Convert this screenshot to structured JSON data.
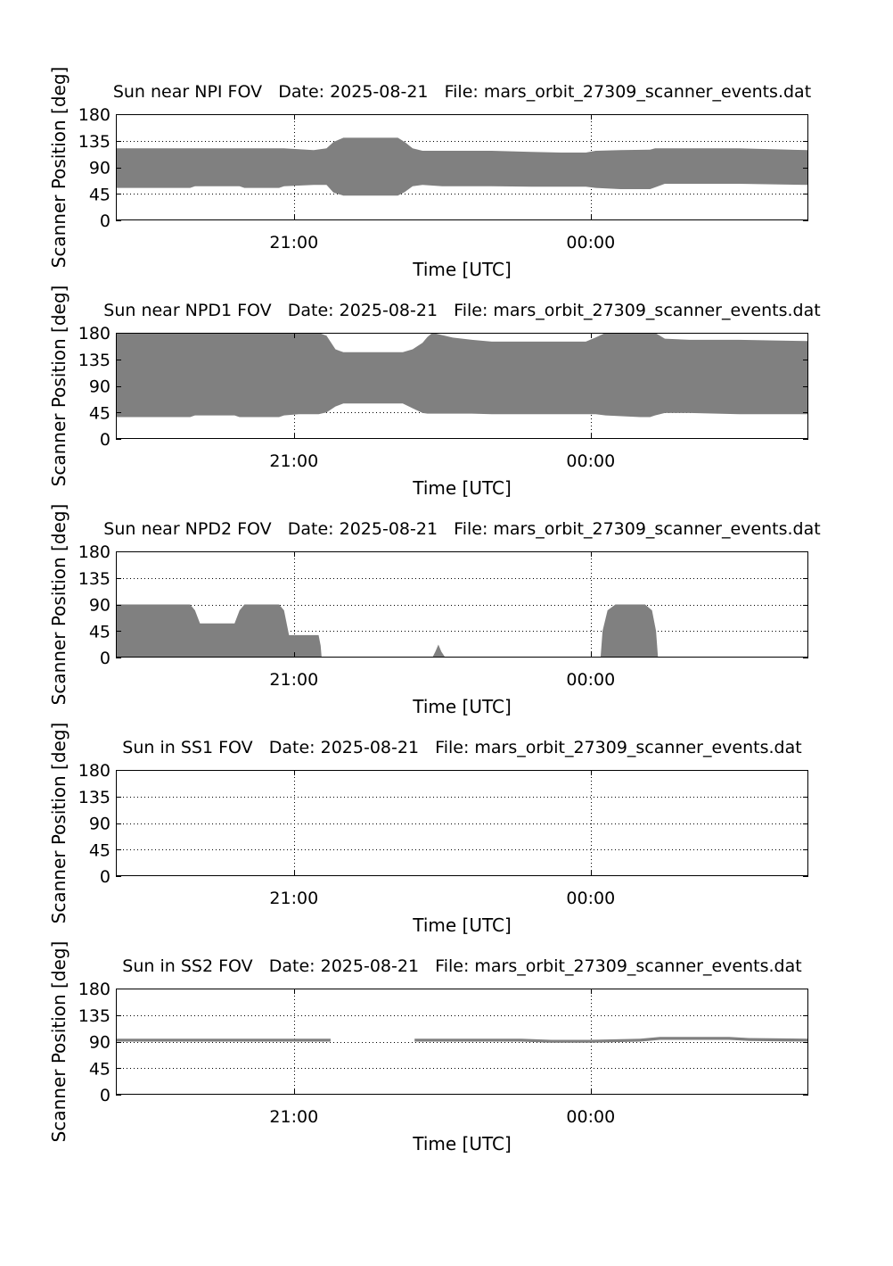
{
  "figure": {
    "background": "#ffffff",
    "fill_color": "#808080",
    "axis_color": "#000000",
    "grid": "dotted"
  },
  "chart_data": [
    {
      "type": "area",
      "title": "Sun near NPI FOV   Date: 2025-08-21   File: mars_orbit_27309_scanner_events.dat",
      "xlabel": "Time [UTC]",
      "ylabel": "Scanner Position [deg]",
      "ylim": [
        0,
        180
      ],
      "yticks": [
        0,
        45,
        90,
        135,
        180
      ],
      "xlim": [
        -1.8,
        5.2
      ],
      "xticks": [
        0,
        3
      ],
      "xtick_labels": [
        "21:00",
        "00:00"
      ],
      "series": [
        {
          "segments": [
            {
              "x": [
                -1.8,
                -1.05,
                -1.0,
                -0.55,
                -0.5,
                -0.15,
                -0.1,
                0.2,
                0.33,
                0.4,
                0.5,
                1.05,
                1.12,
                1.2,
                1.3,
                1.5,
                1.7,
                2.0,
                2.4,
                2.7,
                2.95,
                3.05,
                3.3,
                3.6,
                3.65,
                3.75,
                4.5,
                5.2
              ],
              "lower": [
                55,
                55,
                58,
                58,
                55,
                55,
                58,
                60,
                60,
                47,
                42,
                42,
                48,
                58,
                60,
                58,
                58,
                58,
                57,
                57,
                57,
                55,
                53,
                53,
                56,
                62,
                62,
                60
              ],
              "upper": [
                122,
                122,
                122,
                122,
                122,
                122,
                122,
                119,
                122,
                133,
                140,
                140,
                133,
                122,
                118,
                118,
                118,
                118,
                116,
                115,
                115,
                118,
                119,
                120,
                122,
                122,
                122,
                119
              ]
            }
          ]
        }
      ]
    },
    {
      "type": "area",
      "title": "Sun near NPD1 FOV   Date: 2025-08-21   File: mars_orbit_27309_scanner_events.dat",
      "xlabel": "Time [UTC]",
      "ylabel": "Scanner Position [deg]",
      "ylim": [
        0,
        180
      ],
      "yticks": [
        0,
        45,
        90,
        135,
        180
      ],
      "xlim": [
        -1.8,
        5.2
      ],
      "xticks": [
        0,
        3
      ],
      "xtick_labels": [
        "21:00",
        "00:00"
      ],
      "series": [
        {
          "segments": [
            {
              "x": [
                -1.8,
                -1.05,
                -1.0,
                -0.6,
                -0.55,
                -0.15,
                -0.1,
                0.05,
                0.25,
                0.33,
                0.42,
                0.5,
                1.1,
                1.2,
                1.3,
                1.35,
                1.4,
                1.5,
                1.6,
                1.8,
                2.0,
                2.5,
                2.95,
                3.05,
                3.15,
                3.5,
                3.6,
                3.65,
                3.75,
                4.0,
                4.5,
                5.2
              ],
              "lower": [
                37,
                37,
                40,
                40,
                37,
                37,
                40,
                42,
                42,
                45,
                55,
                60,
                60,
                52,
                44,
                43,
                43,
                43,
                43,
                43,
                42,
                42,
                42,
                42,
                40,
                37,
                37,
                40,
                44,
                44,
                42,
                42
              ],
              "upper": [
                180,
                180,
                180,
                180,
                180,
                180,
                180,
                180,
                180,
                175,
                152,
                147,
                147,
                152,
                163,
                173,
                180,
                176,
                172,
                168,
                165,
                165,
                165,
                172,
                180,
                180,
                180,
                180,
                170,
                168,
                168,
                166
              ]
            }
          ]
        }
      ]
    },
    {
      "type": "area",
      "title": "Sun near NPD2 FOV   Date: 2025-08-21   File: mars_orbit_27309_scanner_events.dat",
      "xlabel": "Time [UTC]",
      "ylabel": "Scanner Position [deg]",
      "ylim": [
        0,
        180
      ],
      "yticks": [
        0,
        45,
        90,
        135,
        180
      ],
      "xlim": [
        -1.8,
        5.2
      ],
      "xticks": [
        0,
        3
      ],
      "xtick_labels": [
        "21:00",
        "00:00"
      ],
      "series": [
        {
          "segments": [
            {
              "x": [
                -1.8,
                -1.05,
                -1.0,
                -0.95,
                -0.6,
                -0.55,
                -0.5,
                -0.15,
                -0.1,
                -0.05,
                0.25,
                0.27,
                0.28
              ],
              "lower": [
                0,
                0,
                0,
                0,
                0,
                0,
                0,
                0,
                0,
                0,
                0,
                0,
                0
              ],
              "upper": [
                90,
                90,
                80,
                58,
                58,
                80,
                90,
                90,
                80,
                38,
                38,
                20,
                0
              ]
            },
            {
              "x": [
                1.4,
                1.43,
                1.46,
                1.49,
                1.53
              ],
              "lower": [
                0,
                0,
                0,
                0,
                0
              ],
              "upper": [
                0,
                10,
                22,
                10,
                0
              ]
            },
            {
              "x": [
                3.1,
                3.12,
                3.17,
                3.25,
                3.55,
                3.62,
                3.66,
                3.68
              ],
              "lower": [
                0,
                0,
                0,
                0,
                0,
                0,
                0,
                0
              ],
              "upper": [
                0,
                45,
                80,
                90,
                90,
                80,
                45,
                0
              ]
            }
          ]
        }
      ]
    },
    {
      "type": "area",
      "title": "Sun in SS1 FOV   Date: 2025-08-21   File: mars_orbit_27309_scanner_events.dat",
      "xlabel": "Time [UTC]",
      "ylabel": "Scanner Position [deg]",
      "ylim": [
        0,
        180
      ],
      "yticks": [
        0,
        45,
        90,
        135,
        180
      ],
      "xlim": [
        -1.8,
        5.2
      ],
      "xticks": [
        0,
        3
      ],
      "xtick_labels": [
        "21:00",
        "00:00"
      ],
      "series": [
        {
          "segments": []
        }
      ]
    },
    {
      "type": "area",
      "title": "Sun in SS2 FOV   Date: 2025-08-21   File: mars_orbit_27309_scanner_events.dat",
      "xlabel": "Time [UTC]",
      "ylabel": "Scanner Position [deg]",
      "ylim": [
        0,
        180
      ],
      "yticks": [
        0,
        45,
        90,
        135,
        180
      ],
      "xlim": [
        -1.8,
        5.2
      ],
      "xticks": [
        0,
        3
      ],
      "xtick_labels": [
        "21:00",
        "00:00"
      ],
      "series": [
        {
          "segments": [
            {
              "x": [
                -1.8,
                0.37
              ],
              "lower": [
                90,
                90
              ],
              "upper": [
                95,
                95
              ]
            },
            {
              "x": [
                1.22,
                2.3,
                2.6,
                3.0,
                3.5,
                3.7,
                4.4,
                4.6,
                5.2
              ],
              "lower": [
                90,
                90,
                88,
                88,
                90,
                93,
                93,
                91,
                90
              ],
              "upper": [
                95,
                95,
                93,
                93,
                95,
                98,
                98,
                96,
                95
              ]
            }
          ]
        }
      ]
    }
  ]
}
